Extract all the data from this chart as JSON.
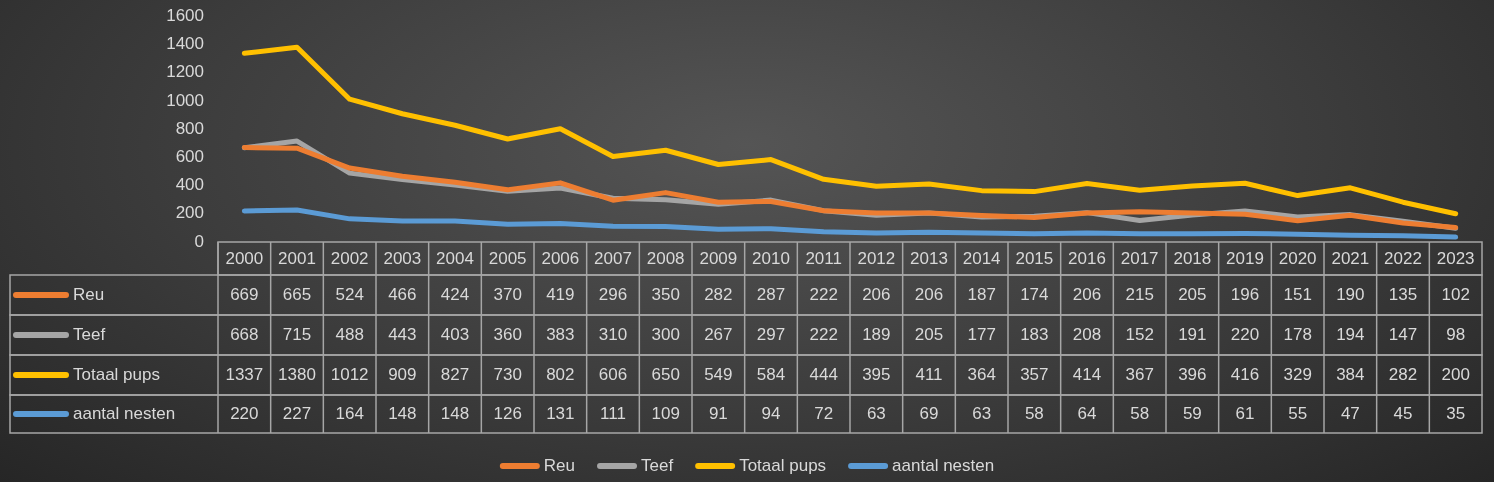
{
  "chart_data": {
    "type": "line",
    "categories": [
      "2000",
      "2001",
      "2002",
      "2003",
      "2004",
      "2005",
      "2006",
      "2007",
      "2008",
      "2009",
      "2010",
      "2011",
      "2012",
      "2013",
      "2014",
      "2015",
      "2016",
      "2017",
      "2018",
      "2019",
      "2020",
      "2021",
      "2022",
      "2023"
    ],
    "series": [
      {
        "name": "Reu",
        "color": "#ed7d31",
        "values": [
          669,
          665,
          524,
          466,
          424,
          370,
          419,
          296,
          350,
          282,
          287,
          222,
          206,
          206,
          187,
          174,
          206,
          215,
          205,
          196,
          151,
          190,
          135,
          102
        ]
      },
      {
        "name": "Teef",
        "color": "#a5a5a5",
        "values": [
          668,
          715,
          488,
          443,
          403,
          360,
          383,
          310,
          300,
          267,
          297,
          222,
          189,
          205,
          177,
          183,
          208,
          152,
          191,
          220,
          178,
          194,
          147,
          98
        ]
      },
      {
        "name": "Totaal pups",
        "color": "#ffc000",
        "values": [
          1337,
          1380,
          1012,
          909,
          827,
          730,
          802,
          606,
          650,
          549,
          584,
          444,
          395,
          411,
          364,
          357,
          414,
          367,
          396,
          416,
          329,
          384,
          282,
          200
        ]
      },
      {
        "name": "aantal nesten",
        "color": "#5b9bd5",
        "values": [
          220,
          227,
          164,
          148,
          148,
          126,
          131,
          111,
          109,
          91,
          94,
          72,
          63,
          69,
          63,
          58,
          64,
          58,
          59,
          61,
          55,
          47,
          45,
          35
        ]
      }
    ],
    "ylim": [
      0,
      1600
    ],
    "yticks": [
      0,
      200,
      400,
      600,
      800,
      1000,
      1200,
      1400,
      1600
    ],
    "grid": false,
    "legend": "bottom",
    "marker": "none",
    "line_style": "solid",
    "data_labels": true
  }
}
